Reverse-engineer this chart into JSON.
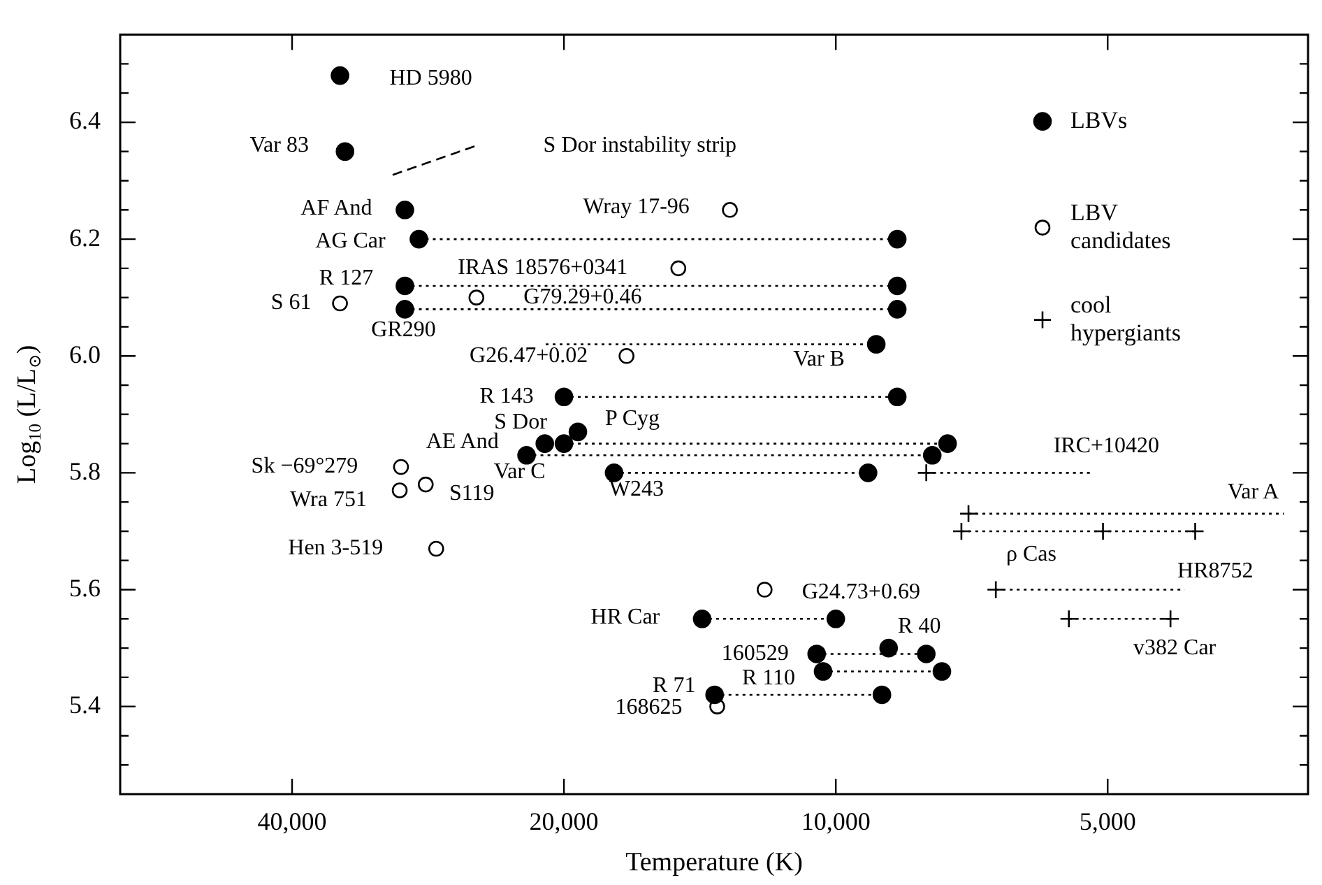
{
  "chart_data": {
    "type": "scatter",
    "xlabel": "Temperature (K)",
    "ylabel": "Log$_{10}$ (L/L$_{⊙}$)",
    "log": "x",
    "xlim": [
      62000,
      3000
    ],
    "xticks": [
      {
        "value": 40000,
        "label": "40,000"
      },
      {
        "value": 20000,
        "label": "20,000"
      },
      {
        "value": 10000,
        "label": "10,000"
      },
      {
        "value": 5000,
        "label": "5,000"
      }
    ],
    "ylim": [
      5.25,
      6.55
    ],
    "yticks": [
      {
        "value": 5.3,
        "label": null
      },
      {
        "value": 5.35,
        "label": null
      },
      5.4,
      {
        "value": 5.45,
        "label": null
      },
      {
        "value": 5.5,
        "label": null
      },
      {
        "value": 5.55,
        "label": null
      },
      5.6,
      {
        "value": 5.65,
        "label": null
      },
      {
        "value": 5.7,
        "label": null
      },
      {
        "value": 5.75,
        "label": null
      },
      5.8,
      {
        "value": 5.85,
        "label": null
      },
      {
        "value": 5.9,
        "label": null
      },
      {
        "value": 5.95,
        "label": null
      },
      {
        "value": 6,
        "label": "6.0"
      },
      {
        "value": 6.05,
        "label": null
      },
      {
        "value": 6.1,
        "label": null
      },
      {
        "value": 6.15,
        "label": null
      },
      6.2,
      {
        "value": 6.25,
        "label": null
      },
      {
        "value": 6.3,
        "label": null
      },
      {
        "value": 6.35,
        "label": null
      },
      6.4,
      {
        "value": 6.45,
        "label": null
      },
      {
        "value": 6.5,
        "label": null
      }
    ],
    "legend": "top right",
    "series": [
      {
        "type": "line",
        "color": "#000000",
        "marker": "none",
        "line_style": "dotted",
        "x": [
          28950,
          8550
        ],
        "values": [
          6.2,
          6.2
        ]
      },
      {
        "type": "line",
        "color": "#000000",
        "marker": "none",
        "line_style": "dotted",
        "x": [
          30000,
          8550
        ],
        "values": [
          6.12,
          6.12
        ]
      },
      {
        "type": "line",
        "color": "#000000",
        "marker": "none",
        "line_style": "dotted",
        "x": [
          30000,
          8550
        ],
        "values": [
          6.08,
          6.08
        ]
      },
      {
        "type": "line",
        "color": "#000000",
        "marker": "none",
        "line_style": "dotted",
        "x": [
          20950,
          9020
        ],
        "values": [
          6.02,
          6.02
        ]
      },
      {
        "type": "line",
        "color": "#000000",
        "marker": "none",
        "line_style": "dotted",
        "x": [
          20000,
          8550
        ],
        "values": [
          5.93,
          5.93
        ]
      },
      {
        "type": "line",
        "color": "#000000",
        "marker": "none",
        "line_style": "dotted",
        "x": [
          20000,
          7520
        ],
        "values": [
          5.85,
          5.85
        ]
      },
      {
        "type": "line",
        "color": "#000000",
        "marker": "none",
        "line_style": "dotted",
        "x": [
          22000,
          7820
        ],
        "values": [
          5.83,
          5.83
        ]
      },
      {
        "type": "line",
        "color": "#000000",
        "marker": "none",
        "line_style": "dotted",
        "x": [
          17600,
          9210
        ],
        "values": [
          5.8,
          5.8
        ]
      },
      {
        "type": "line",
        "color": "#000000",
        "marker": "none",
        "line_style": "dotted",
        "x": [
          7940,
          5180
        ],
        "values": [
          5.8,
          5.8
        ]
      },
      {
        "type": "line",
        "color": "#000000",
        "marker": "none",
        "line_style": "dotted",
        "x": [
          7130,
          3190
        ],
        "values": [
          5.73,
          5.73
        ]
      },
      {
        "type": "line",
        "color": "#000000",
        "marker": "none",
        "line_style": "dotted",
        "x": [
          7260,
          4000
        ],
        "values": [
          5.7,
          5.7
        ]
      },
      {
        "type": "line",
        "color": "#000000",
        "marker": "none",
        "line_style": "dotted",
        "x": [
          6650,
          4110
        ],
        "values": [
          5.6,
          5.6
        ]
      },
      {
        "type": "line",
        "color": "#000000",
        "marker": "none",
        "line_style": "dotted",
        "x": [
          5520,
          4260
        ],
        "values": [
          5.55,
          5.55
        ]
      },
      {
        "type": "line",
        "color": "#000000",
        "marker": "none",
        "line_style": "dotted",
        "x": [
          14060,
          10000
        ],
        "values": [
          5.55,
          5.55
        ]
      },
      {
        "type": "line",
        "color": "#000000",
        "marker": "none",
        "line_style": "dotted",
        "x": [
          10500,
          7940
        ],
        "values": [
          5.49,
          5.49
        ]
      },
      {
        "type": "line",
        "color": "#000000",
        "marker": "none",
        "line_style": "dotted",
        "x": [
          10330,
          7630
        ],
        "values": [
          5.46,
          5.46
        ]
      },
      {
        "type": "line",
        "color": "#000000",
        "marker": "none",
        "line_style": "dotted",
        "x": [
          13620,
          8890
        ],
        "values": [
          5.42,
          5.42
        ]
      },
      {
        "type": "line",
        "color": "#000000",
        "marker": "none",
        "line_style": "dashed",
        "x": [
          30950,
          25000
        ],
        "values": [
          6.31,
          6.36
        ]
      },
      {
        "name": "LBVs",
        "type": "scatter",
        "color": "#000000",
        "marker": "circle",
        "x": [
          35400,
          34950,
          30000,
          28950,
          8550,
          30000,
          8550,
          30000,
          8550,
          9020,
          20000,
          8550,
          19300,
          20000,
          7520,
          21000,
          22000,
          7820,
          17600,
          9210,
          14060,
          10000,
          10500,
          8740,
          7940,
          10330,
          7630,
          13620,
          8890
        ],
        "values": [
          6.48,
          6.35,
          6.25,
          6.2,
          6.2,
          6.12,
          6.12,
          6.08,
          6.08,
          6.02,
          5.93,
          5.93,
          5.87,
          5.85,
          5.85,
          5.85,
          5.83,
          5.83,
          5.8,
          5.8,
          5.55,
          5.55,
          5.49,
          5.5,
          5.49,
          5.46,
          5.46,
          5.42,
          5.42
        ]
      },
      {
        "name": "LBV candidates",
        "type": "scatter",
        "color": "#000000",
        "marker": "open circle",
        "x": [
          13100,
          14940,
          25000,
          35400,
          17050,
          30300,
          30400,
          28450,
          27700,
          11990,
          13530
        ],
        "values": [
          6.25,
          6.15,
          6.1,
          6.09,
          6.0,
          5.81,
          5.77,
          5.78,
          5.67,
          5.6,
          5.4
        ]
      },
      {
        "name": "cool hypergiants",
        "type": "scatter",
        "color": "#000000",
        "marker": "cross",
        "x": [
          7940,
          7130,
          7260,
          5060,
          4000,
          6650,
          5520,
          4260
        ],
        "values": [
          5.8,
          5.73,
          5.7,
          5.7,
          5.7,
          5.6,
          5.55,
          5.55
        ]
      }
    ],
    "annotations": [
      {
        "text": "HD 5980",
        "x": 35400,
        "y": 6.48
      },
      {
        "text": "Var 83",
        "x": 34950,
        "y": 6.35
      },
      {
        "text": "S Dor instability strip",
        "x": 25000,
        "y": 6.36
      },
      {
        "text": "AF And",
        "x": 30000,
        "y": 6.25
      },
      {
        "text": "AG Car",
        "x": 28950,
        "y": 6.2
      },
      {
        "text": "R 127",
        "x": 30000,
        "y": 6.12
      },
      {
        "text": "IRAS 18576+0341",
        "x": 14940,
        "y": 6.15
      },
      {
        "text": "S 61",
        "x": 35400,
        "y": 6.09
      },
      {
        "text": "G79.29+0.46",
        "x": 25000,
        "y": 6.1
      },
      {
        "text": "GR290",
        "x": 30000,
        "y": 6.08
      },
      {
        "text": "Wray 17-96",
        "x": 13100,
        "y": 6.25
      },
      {
        "text": "G26.47+0.02",
        "x": 17050,
        "y": 6.0
      },
      {
        "text": "Var B",
        "x": 9020,
        "y": 6.02
      },
      {
        "text": "R 143",
        "x": 20000,
        "y": 5.93
      },
      {
        "text": "S Dor",
        "x": 20000,
        "y": 5.85
      },
      {
        "text": "P Cyg",
        "x": 19300,
        "y": 5.87
      },
      {
        "text": "AE And",
        "x": 21000,
        "y": 5.85
      },
      {
        "text": "Var C",
        "x": 22000,
        "y": 5.83
      },
      {
        "text": "W243",
        "x": 17600,
        "y": 5.8
      },
      {
        "text": "Sk −69°279",
        "x": 30300,
        "y": 5.81
      },
      {
        "text": "Wra 751",
        "x": 30400,
        "y": 5.77
      },
      {
        "text": "S119",
        "x": 28450,
        "y": 5.78
      },
      {
        "text": "Hen 3-519",
        "x": 27700,
        "y": 5.67
      },
      {
        "text": "IRC+10420",
        "x": 5180,
        "y": 5.8
      },
      {
        "text": "Var A",
        "x": 3190,
        "y": 5.73
      },
      {
        "text": "ρ Cas",
        "x": 7260,
        "y": 5.7
      },
      {
        "text": "HR8752",
        "x": 4110,
        "y": 5.6
      },
      {
        "text": "v382 Car",
        "x": 4260,
        "y": 5.55
      },
      {
        "text": "G24.73+0.69",
        "x": 11990,
        "y": 5.6
      },
      {
        "text": "HR Car",
        "x": 14060,
        "y": 5.55
      },
      {
        "text": "R 40",
        "x": 8740,
        "y": 5.5
      },
      {
        "text": "160529",
        "x": 10500,
        "y": 5.49
      },
      {
        "text": "R 110",
        "x": 10330,
        "y": 5.46
      },
      {
        "text": "R 71",
        "x": 13620,
        "y": 5.42
      },
      {
        "text": "168625",
        "x": 13530,
        "y": 5.4
      }
    ]
  }
}
